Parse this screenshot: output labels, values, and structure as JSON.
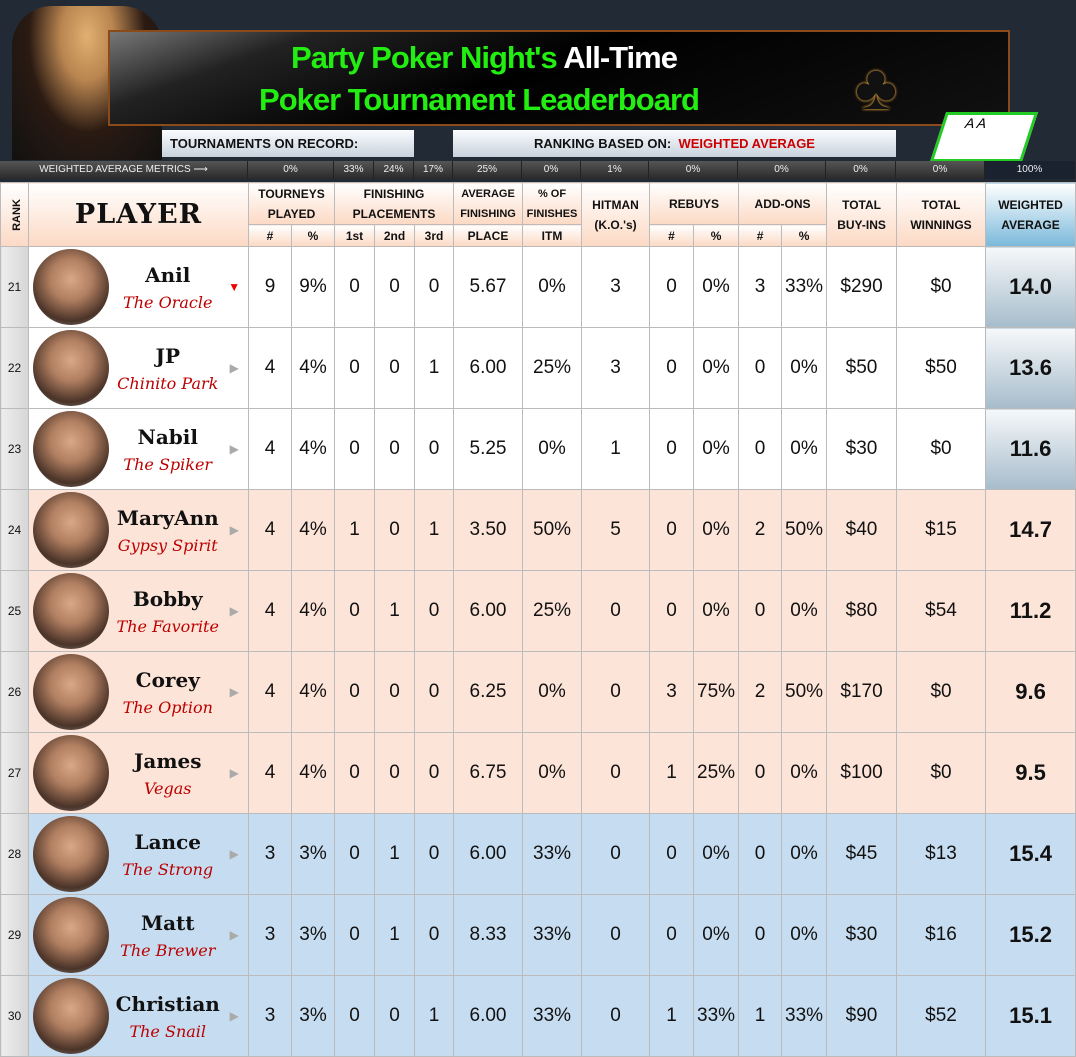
{
  "header": {
    "title_green": "Party Poker Night's",
    "title_white": "All-Time",
    "title_line2": "Poker Tournament Leaderboard",
    "tournaments_label": "TOURNAMENTS ON RECORD:",
    "ranking_label": "RANKING BASED ON:",
    "ranking_value": "WEIGHTED AVERAGE",
    "cards": "A A"
  },
  "metrics": {
    "label": "WEIGHTED AVERAGE METRICS ⟶",
    "values": [
      "0%",
      "33%",
      "24%",
      "17%",
      "25%",
      "0%",
      "1%",
      "0%",
      "0%",
      "0%",
      "0%",
      "100%"
    ]
  },
  "columns": {
    "rank": "RANK",
    "player": "PLAYER",
    "tourneys": "TOURNEYS PLAYED",
    "placements": "FINISHING PLACEMENTS",
    "avg": "AVERAGE FINISHING",
    "avg2": "PLACE",
    "itm": "% OF FINISHES",
    "itm2": "ITM",
    "hitman": "HITMAN (K.O.'s)",
    "rebuys": "REBUYS",
    "addons": "ADD-ONS",
    "buyins": "TOTAL BUY-INS",
    "winnings": "TOTAL WINNINGS",
    "weighted": "WEIGHTED AVERAGE",
    "num": "#",
    "pct": "%",
    "first": "1st",
    "second": "2nd",
    "third": "3rd"
  },
  "colors": {
    "peach": "#fde4d8",
    "blue": "#c6dcf0",
    "title_green": "#22ee11",
    "trend_down": "#ee0000"
  },
  "rows": [
    {
      "rank": "21",
      "name": "Anil",
      "nick": "The Oracle",
      "trend": "▼",
      "trend_icon": "down",
      "played": "9",
      "played_pct": "9%",
      "first": "0",
      "second": "0",
      "third": "0",
      "avg": "5.67",
      "itm": "0%",
      "hitman": "3",
      "rebuys": "0",
      "rebuys_pct": "0%",
      "addons": "3",
      "addons_pct": "33%",
      "buyins": "$290",
      "winnings": "$0",
      "weighted": "14.0",
      "group": "white"
    },
    {
      "rank": "22",
      "name": "JP",
      "nick": "Chinito Park",
      "trend": "▶",
      "trend_icon": "flat",
      "played": "4",
      "played_pct": "4%",
      "first": "0",
      "second": "0",
      "third": "1",
      "avg": "6.00",
      "itm": "25%",
      "hitman": "3",
      "rebuys": "0",
      "rebuys_pct": "0%",
      "addons": "0",
      "addons_pct": "0%",
      "buyins": "$50",
      "winnings": "$50",
      "weighted": "13.6",
      "group": "white"
    },
    {
      "rank": "23",
      "name": "Nabil",
      "nick": "The Spiker",
      "trend": "▶",
      "trend_icon": "flat",
      "played": "4",
      "played_pct": "4%",
      "first": "0",
      "second": "0",
      "third": "0",
      "avg": "5.25",
      "itm": "0%",
      "hitman": "1",
      "rebuys": "0",
      "rebuys_pct": "0%",
      "addons": "0",
      "addons_pct": "0%",
      "buyins": "$30",
      "winnings": "$0",
      "weighted": "11.6",
      "group": "white"
    },
    {
      "rank": "24",
      "name": "MaryAnn",
      "nick": "Gypsy Spirit",
      "trend": "▶",
      "trend_icon": "flat",
      "played": "4",
      "played_pct": "4%",
      "first": "1",
      "second": "0",
      "third": "1",
      "avg": "3.50",
      "itm": "50%",
      "hitman": "5",
      "rebuys": "0",
      "rebuys_pct": "0%",
      "addons": "2",
      "addons_pct": "50%",
      "buyins": "$40",
      "winnings": "$15",
      "weighted": "14.7",
      "group": "peach"
    },
    {
      "rank": "25",
      "name": "Bobby",
      "nick": "The Favorite",
      "trend": "▶",
      "trend_icon": "flat",
      "played": "4",
      "played_pct": "4%",
      "first": "0",
      "second": "1",
      "third": "0",
      "avg": "6.00",
      "itm": "25%",
      "hitman": "0",
      "rebuys": "0",
      "rebuys_pct": "0%",
      "addons": "0",
      "addons_pct": "0%",
      "buyins": "$80",
      "winnings": "$54",
      "weighted": "11.2",
      "group": "peach"
    },
    {
      "rank": "26",
      "name": "Corey",
      "nick": "The Option",
      "trend": "▶",
      "trend_icon": "flat",
      "played": "4",
      "played_pct": "4%",
      "first": "0",
      "second": "0",
      "third": "0",
      "avg": "6.25",
      "itm": "0%",
      "hitman": "0",
      "rebuys": "3",
      "rebuys_pct": "75%",
      "addons": "2",
      "addons_pct": "50%",
      "buyins": "$170",
      "winnings": "$0",
      "weighted": "9.6",
      "group": "peach"
    },
    {
      "rank": "27",
      "name": "James",
      "nick": "Vegas",
      "trend": "▶",
      "trend_icon": "flat",
      "played": "4",
      "played_pct": "4%",
      "first": "0",
      "second": "0",
      "third": "0",
      "avg": "6.75",
      "itm": "0%",
      "hitman": "0",
      "rebuys": "1",
      "rebuys_pct": "25%",
      "addons": "0",
      "addons_pct": "0%",
      "buyins": "$100",
      "winnings": "$0",
      "weighted": "9.5",
      "group": "peach"
    },
    {
      "rank": "28",
      "name": "Lance",
      "nick": "The Strong",
      "trend": "▶",
      "trend_icon": "flat",
      "played": "3",
      "played_pct": "3%",
      "first": "0",
      "second": "1",
      "third": "0",
      "avg": "6.00",
      "itm": "33%",
      "hitman": "0",
      "rebuys": "0",
      "rebuys_pct": "0%",
      "addons": "0",
      "addons_pct": "0%",
      "buyins": "$45",
      "winnings": "$13",
      "weighted": "15.4",
      "group": "blue"
    },
    {
      "rank": "29",
      "name": "Matt",
      "nick": "The Brewer",
      "trend": "▶",
      "trend_icon": "flat",
      "played": "3",
      "played_pct": "3%",
      "first": "0",
      "second": "1",
      "third": "0",
      "avg": "8.33",
      "itm": "33%",
      "hitman": "0",
      "rebuys": "0",
      "rebuys_pct": "0%",
      "addons": "0",
      "addons_pct": "0%",
      "buyins": "$30",
      "winnings": "$16",
      "weighted": "15.2",
      "group": "blue"
    },
    {
      "rank": "30",
      "name": "Christian",
      "nick": "The Snail",
      "trend": "▶",
      "trend_icon": "flat",
      "played": "3",
      "played_pct": "3%",
      "first": "0",
      "second": "0",
      "third": "1",
      "avg": "6.00",
      "itm": "33%",
      "hitman": "0",
      "rebuys": "1",
      "rebuys_pct": "33%",
      "addons": "1",
      "addons_pct": "33%",
      "buyins": "$90",
      "winnings": "$52",
      "weighted": "15.1",
      "group": "blue"
    }
  ]
}
